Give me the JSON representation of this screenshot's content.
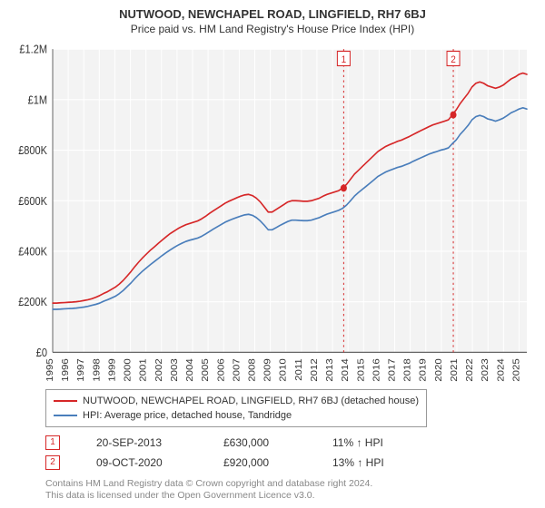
{
  "title": "NUTWOOD, NEWCHAPEL ROAD, LINGFIELD, RH7 6BJ",
  "subtitle": "Price paid vs. HM Land Registry's House Price Index (HPI)",
  "chart": {
    "type": "line",
    "background_color": "#ffffff",
    "plot_background_color": "#f3f3f3",
    "grid_color": "#ffffff",
    "grid_linewidth": 1,
    "axis_line_color": "#666666",
    "x_years": [
      1995,
      1996,
      1997,
      1998,
      1999,
      2000,
      2001,
      2002,
      2003,
      2004,
      2005,
      2006,
      2007,
      2008,
      2009,
      2010,
      2011,
      2012,
      2013,
      2014,
      2015,
      2016,
      2017,
      2018,
      2019,
      2020,
      2021,
      2022,
      2023,
      2024,
      2025
    ],
    "xlim": [
      1995,
      2025.5
    ],
    "ylim": [
      0,
      1200000
    ],
    "y_ticks": [
      0,
      200000,
      400000,
      600000,
      800000,
      1000000,
      1200000
    ],
    "y_tick_labels": [
      "£0",
      "£200K",
      "£400K",
      "£600K",
      "£800K",
      "£1M",
      "£1.2M"
    ],
    "axis_fontsize": 11,
    "x_fontsize": 10,
    "series": [
      {
        "name": "nutwood",
        "label": "NUTWOOD, NEWCHAPEL ROAD, LINGFIELD, RH7 6BJ (detached house)",
        "color": "#d62728",
        "linewidth": 1.5,
        "values": [
          195000,
          195000,
          196000,
          197000,
          198000,
          199000,
          200000,
          202000,
          205000,
          208000,
          212000,
          218000,
          225000,
          233000,
          240000,
          249000,
          258000,
          270000,
          285000,
          302000,
          320000,
          340000,
          358000,
          375000,
          390000,
          405000,
          418000,
          432000,
          445000,
          458000,
          470000,
          480000,
          490000,
          498000,
          505000,
          510000,
          515000,
          520000,
          528000,
          538000,
          550000,
          560000,
          570000,
          580000,
          590000,
          598000,
          605000,
          612000,
          618000,
          623000,
          625000,
          620000,
          610000,
          595000,
          575000,
          555000,
          555000,
          565000,
          575000,
          585000,
          595000,
          600000,
          600000,
          599000,
          598000,
          598000,
          600000,
          605000,
          610000,
          618000,
          625000,
          630000,
          635000,
          640000,
          650000,
          665000,
          685000,
          705000,
          720000,
          735000,
          750000,
          765000,
          780000,
          795000,
          805000,
          815000,
          822000,
          828000,
          835000,
          840000,
          847000,
          854000,
          862000,
          870000,
          878000,
          885000,
          893000,
          900000,
          905000,
          910000,
          915000,
          920000,
          940000,
          960000,
          985000,
          1005000,
          1025000,
          1050000,
          1065000,
          1070000,
          1065000,
          1055000,
          1050000,
          1045000,
          1050000,
          1058000,
          1070000,
          1082000,
          1090000,
          1100000,
          1105000,
          1100000
        ]
      },
      {
        "name": "hpi",
        "label": "HPI: Average price, detached house, Tandridge",
        "color": "#4a7ebb",
        "linewidth": 1.5,
        "values": [
          170000,
          170000,
          171000,
          172000,
          173000,
          174000,
          175000,
          177000,
          179000,
          182000,
          186000,
          190000,
          195000,
          202000,
          208000,
          215000,
          222000,
          232000,
          245000,
          260000,
          275000,
          292000,
          308000,
          322000,
          335000,
          348000,
          360000,
          372000,
          384000,
          395000,
          405000,
          415000,
          424000,
          432000,
          439000,
          444000,
          448000,
          452000,
          459000,
          468000,
          478000,
          488000,
          497000,
          506000,
          515000,
          522000,
          528000,
          534000,
          539000,
          544000,
          546000,
          542000,
          533000,
          520000,
          503000,
          485000,
          485000,
          493000,
          502000,
          510000,
          518000,
          523000,
          523000,
          522000,
          521000,
          521000,
          523000,
          528000,
          533000,
          540000,
          547000,
          552000,
          557000,
          562000,
          570000,
          583000,
          600000,
          618000,
          632000,
          645000,
          657000,
          670000,
          683000,
          696000,
          705000,
          714000,
          720000,
          726000,
          732000,
          736000,
          742000,
          748000,
          756000,
          763000,
          770000,
          777000,
          784000,
          790000,
          795000,
          800000,
          804000,
          809000,
          826000,
          841000,
          863000,
          880000,
          898000,
          920000,
          933000,
          938000,
          933000,
          924000,
          920000,
          915000,
          920000,
          927000,
          937000,
          948000,
          955000,
          963000,
          968000,
          963000
        ]
      }
    ],
    "markers": [
      {
        "num": "1",
        "year": 2013.72,
        "color": "#d62728"
      },
      {
        "num": "2",
        "year": 2020.77,
        "color": "#d62728"
      }
    ],
    "marker_line_dash": "2,3",
    "marker_badge_border": "#d62728",
    "marker_badge_bg": "#ffffff"
  },
  "markers_detail": [
    {
      "num": "1",
      "date": "20-SEP-2013",
      "price": "£630,000",
      "delta": "11% ↑ HPI"
    },
    {
      "num": "2",
      "date": "09-OCT-2020",
      "price": "£920,000",
      "delta": "13% ↑ HPI"
    }
  ],
  "footnote_line1": "Contains HM Land Registry data © Crown copyright and database right 2024.",
  "footnote_line2": "This data is licensed under the Open Government Licence v3.0."
}
